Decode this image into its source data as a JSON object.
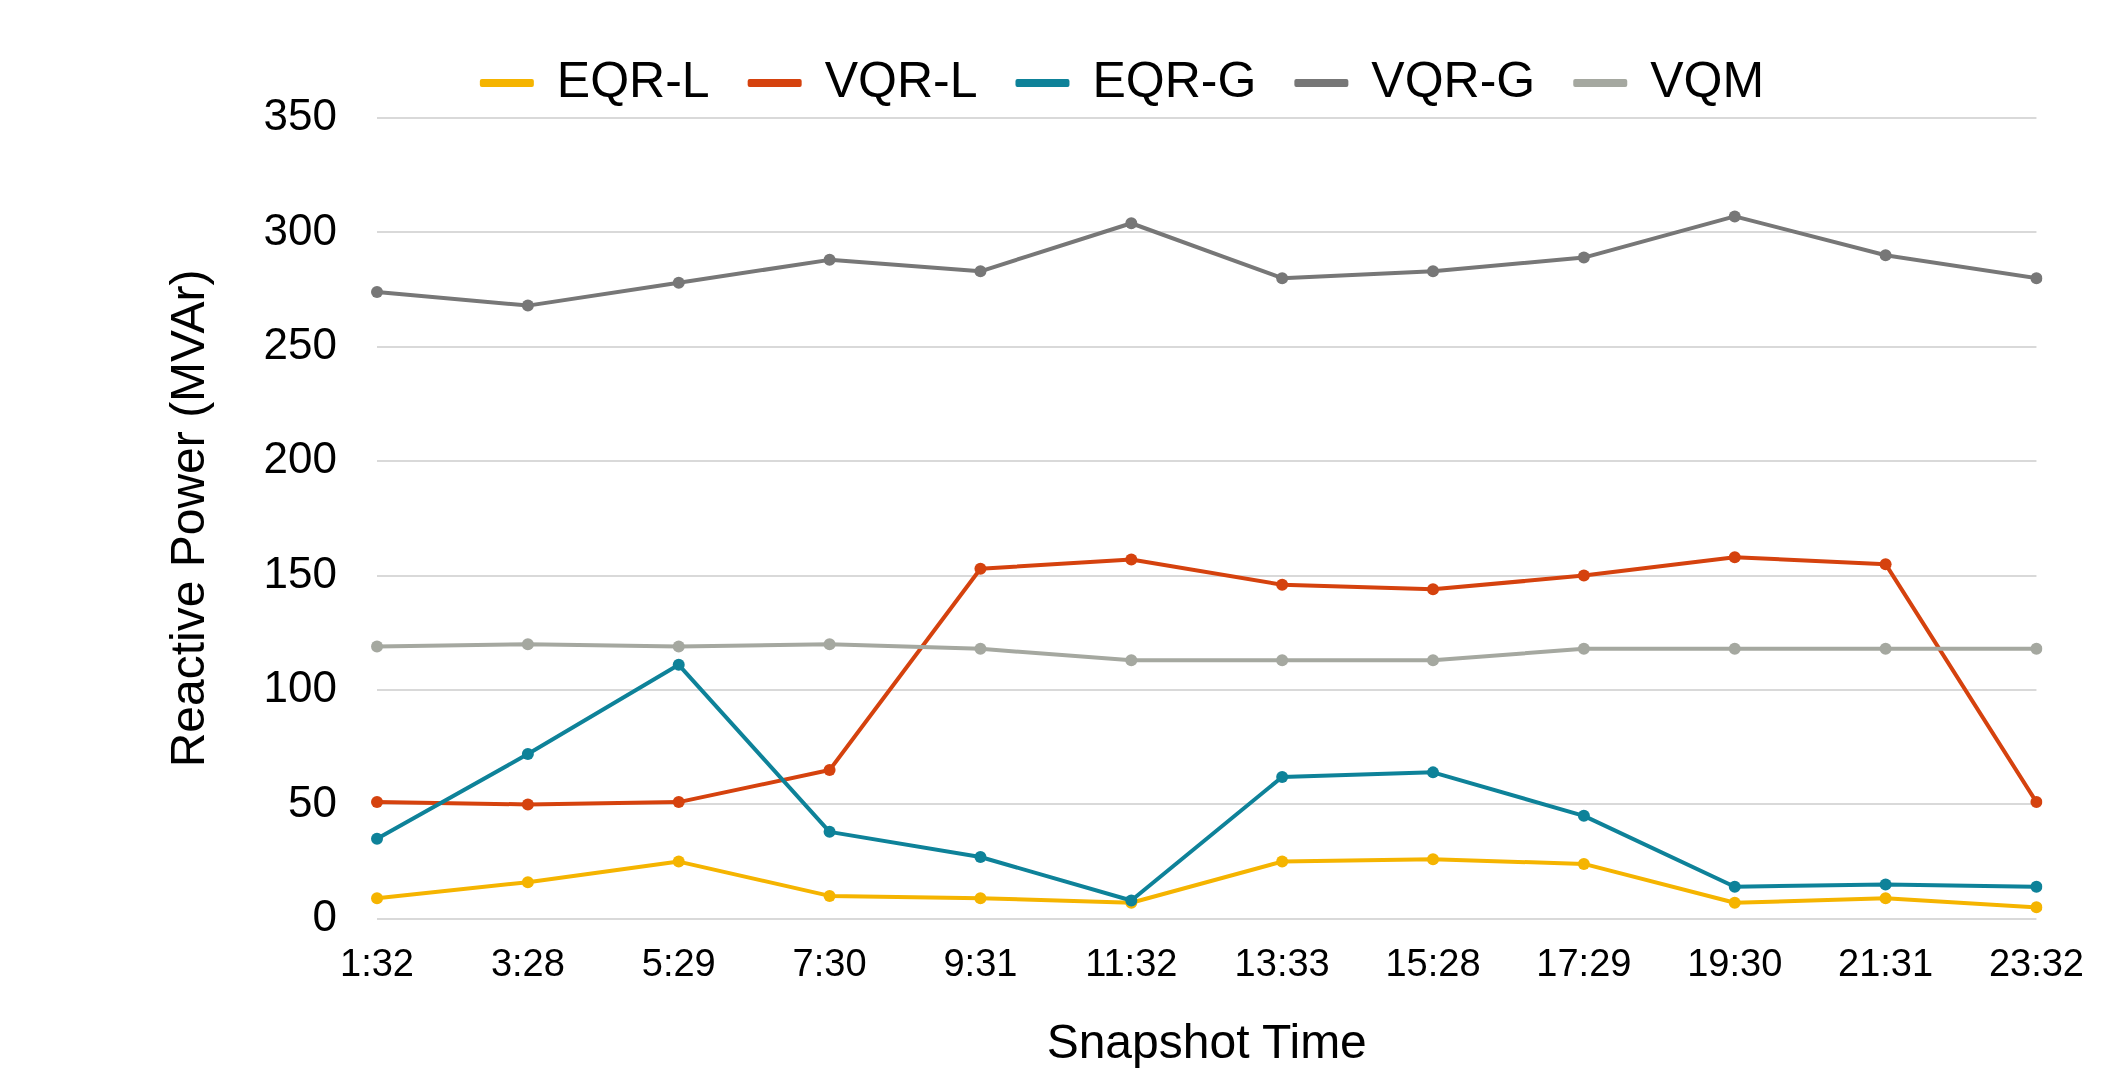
{
  "chart_data": {
    "type": "line",
    "xlabel": "Snapshot Time",
    "ylabel": "Reactive Power (MVAr)",
    "categories": [
      "1:32",
      "3:28",
      "5:29",
      "7:30",
      "9:31",
      "11:32",
      "13:33",
      "15:28",
      "17:29",
      "19:30",
      "21:31",
      "23:32"
    ],
    "ylim": [
      0,
      350
    ],
    "yticks": [
      0,
      50,
      100,
      150,
      200,
      250,
      300,
      350
    ],
    "grid": "y",
    "legend": "top",
    "marker": "circle",
    "line_style": "solid",
    "series": [
      {
        "name": "EQR-L",
        "color": "#f5b400",
        "values": [
          9,
          16,
          25,
          10,
          9,
          7,
          25,
          26,
          24,
          7,
          9,
          5
        ]
      },
      {
        "name": "VQR-L",
        "color": "#d5420e",
        "values": [
          51,
          50,
          51,
          65,
          153,
          157,
          146,
          144,
          150,
          158,
          155,
          51
        ]
      },
      {
        "name": "EQR-G",
        "color": "#0e8299",
        "values": [
          35,
          72,
          111,
          38,
          27,
          8,
          62,
          64,
          45,
          14,
          15,
          14
        ]
      },
      {
        "name": "VQR-G",
        "color": "#777777",
        "values": [
          274,
          268,
          278,
          288,
          283,
          304,
          280,
          283,
          289,
          307,
          290,
          280
        ]
      },
      {
        "name": "VQM",
        "color": "#a5a8a0",
        "values": [
          119,
          120,
          119,
          120,
          118,
          113,
          113,
          113,
          118,
          118,
          118,
          118
        ]
      }
    ]
  }
}
